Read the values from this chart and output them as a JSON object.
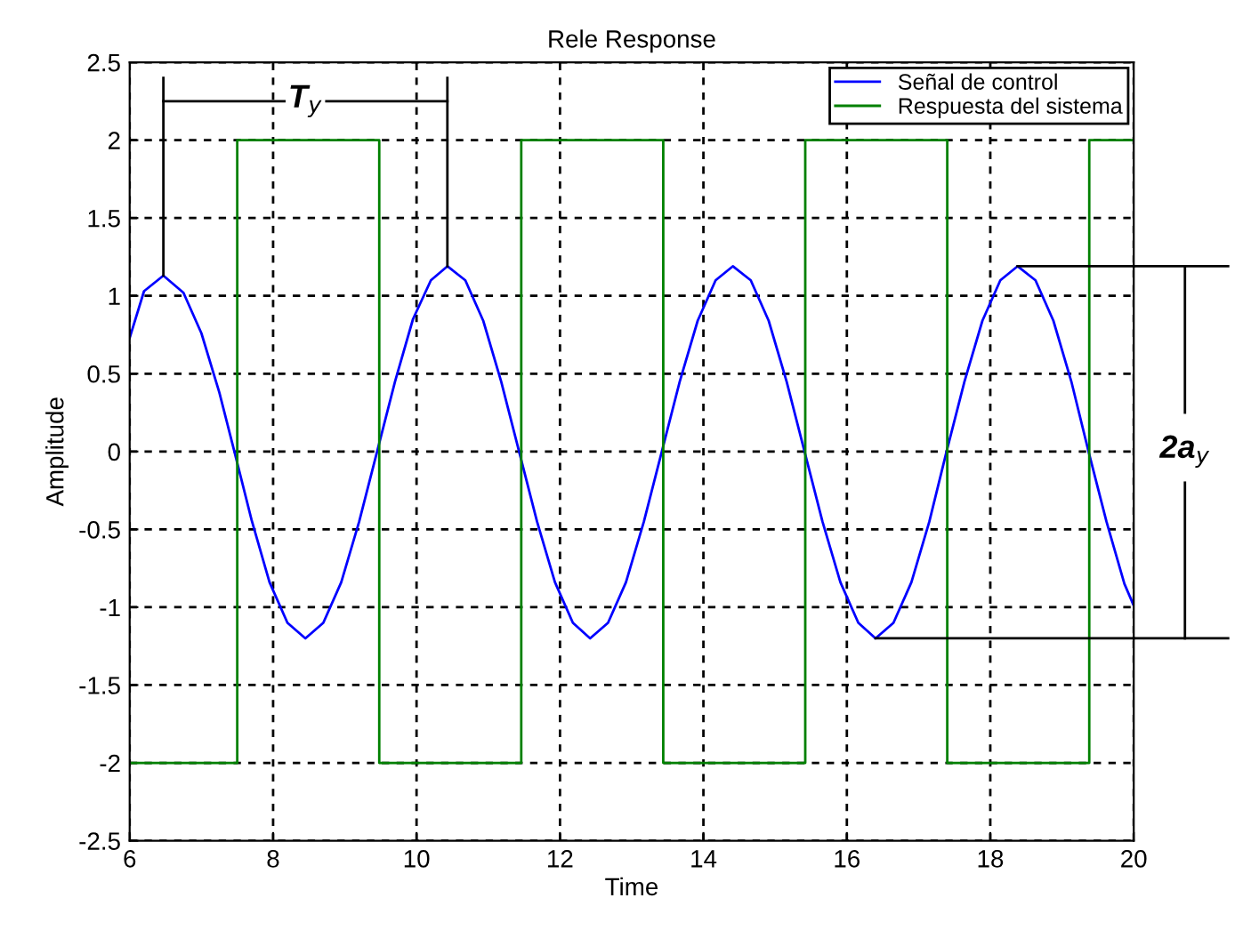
{
  "chart_data": {
    "type": "line",
    "title": "Rele Response",
    "xlabel": "Time",
    "ylabel": "Amplitude",
    "xlim": [
      6,
      20
    ],
    "xticks": [
      6,
      8,
      10,
      12,
      14,
      16,
      18,
      20
    ],
    "ylim": [
      -2.5,
      2.5
    ],
    "yticks": [
      -2.5,
      -2,
      -1.5,
      -1,
      -0.5,
      0,
      0.5,
      1,
      1.5,
      2,
      2.5
    ],
    "grid": true,
    "legend": "top right",
    "annotations": [
      {
        "text": "T$_{y}$",
        "x": 8.45,
        "y": 2.25
      },
      "2a$_{y}$"
    ],
    "series": [
      {
        "name": "Señal de control",
        "color": "#0000ff",
        "x": [
          6.0,
          6.2,
          6.47,
          6.75,
          7.0,
          7.25,
          7.46,
          7.7,
          7.95,
          8.2,
          8.45,
          8.7,
          8.95,
          9.2,
          9.45,
          9.7,
          9.95,
          10.2,
          10.43,
          10.68,
          10.93,
          11.18,
          11.43,
          11.68,
          11.93,
          12.18,
          12.42,
          12.67,
          12.92,
          13.17,
          13.42,
          13.67,
          13.92,
          14.17,
          14.41,
          14.66,
          14.91,
          15.16,
          15.41,
          15.66,
          15.91,
          16.16,
          16.4,
          16.65,
          16.9,
          17.15,
          17.39,
          17.64,
          17.89,
          18.14,
          18.38,
          18.63,
          18.88,
          19.13,
          19.37,
          19.62,
          19.87,
          20.0
        ],
        "values": [
          0.73,
          1.03,
          1.13,
          1.02,
          0.76,
          0.38,
          0.0,
          -0.44,
          -0.84,
          -1.1,
          -1.2,
          -1.1,
          -0.84,
          -0.45,
          0.0,
          0.45,
          0.85,
          1.1,
          1.19,
          1.1,
          0.84,
          0.45,
          0.0,
          -0.45,
          -0.84,
          -1.1,
          -1.2,
          -1.1,
          -0.84,
          -0.45,
          0.0,
          0.45,
          0.84,
          1.1,
          1.19,
          1.1,
          0.84,
          0.45,
          0.0,
          -0.45,
          -0.84,
          -1.1,
          -1.2,
          -1.1,
          -0.84,
          -0.45,
          0.0,
          0.45,
          0.84,
          1.1,
          1.19,
          1.1,
          0.84,
          0.45,
          0.0,
          -0.45,
          -0.85,
          -0.99
        ]
      },
      {
        "name": "Respuesta del sistema",
        "color": "#008000",
        "type": "step",
        "x": [
          6,
          7.5,
          9.48,
          11.46,
          13.44,
          15.42,
          17.4,
          19.38,
          20
        ],
        "values": [
          -2,
          2,
          -2,
          2,
          -2,
          2,
          -2,
          2,
          2
        ]
      }
    ]
  }
}
